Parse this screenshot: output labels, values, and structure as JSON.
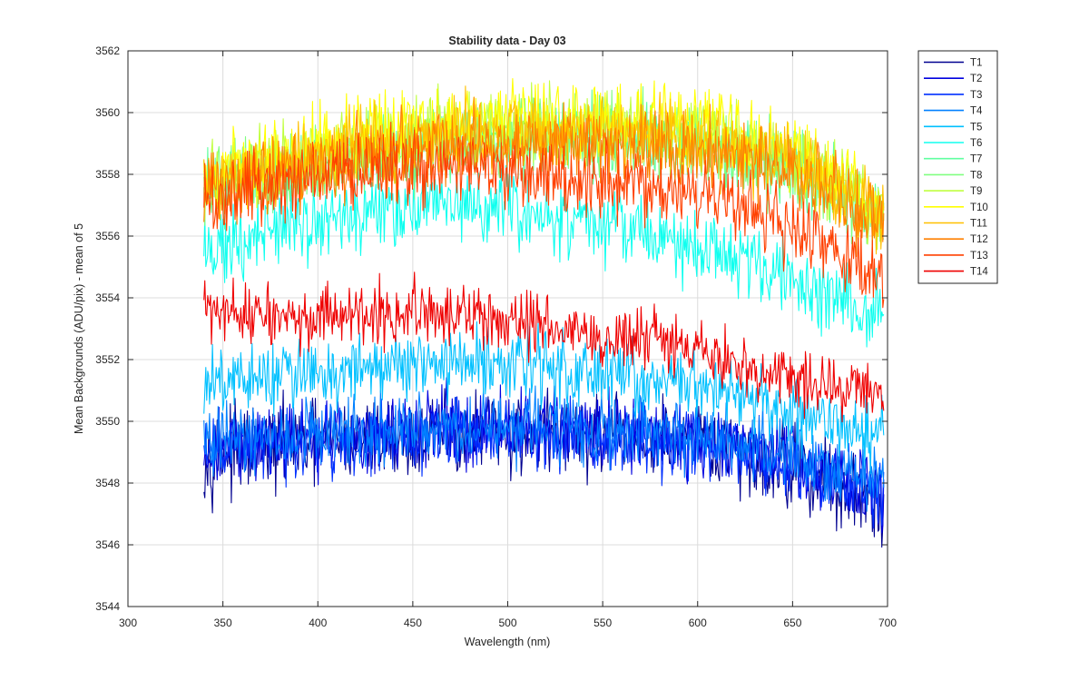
{
  "chart_data": {
    "type": "line",
    "title": "Stability data - Day 03",
    "xlabel": "Wavelength (nm)",
    "ylabel": "Mean Backgrounds (ADU/pix) - mean of 5",
    "xlim": [
      300,
      700
    ],
    "ylim": [
      3544,
      3562
    ],
    "xticks": [
      300,
      350,
      400,
      450,
      500,
      550,
      600,
      650,
      700
    ],
    "yticks": [
      3544,
      3546,
      3548,
      3550,
      3552,
      3554,
      3556,
      3558,
      3560,
      3562
    ],
    "grid": true,
    "legend_position": "outside-top-right",
    "x_start": 340,
    "x_end": 698,
    "series": [
      {
        "name": "T1",
        "color": "#00008F",
        "baseline": [
          3548.9,
          3549.2,
          3549.4,
          3549.6,
          3549.6,
          3549.4,
          3549.2,
          3548.5,
          3547.2
        ],
        "noise": 0.65
      },
      {
        "name": "T2",
        "color": "#0000DF",
        "baseline": [
          3549.0,
          3549.4,
          3549.6,
          3549.8,
          3549.8,
          3549.6,
          3549.3,
          3548.7,
          3547.5
        ],
        "noise": 0.6
      },
      {
        "name": "T3",
        "color": "#0030FF",
        "baseline": [
          3549.0,
          3549.3,
          3549.5,
          3549.6,
          3549.7,
          3549.5,
          3549.2,
          3548.6,
          3547.6
        ],
        "noise": 0.55
      },
      {
        "name": "T4",
        "color": "#0080FF",
        "baseline": [
          3549.2,
          3549.5,
          3549.6,
          3549.8,
          3549.9,
          3549.7,
          3549.4,
          3548.9,
          3548.0
        ],
        "noise": 0.55
      },
      {
        "name": "T5",
        "color": "#00C0FF",
        "baseline": [
          3551.0,
          3551.6,
          3551.8,
          3551.9,
          3551.8,
          3551.5,
          3551.0,
          3550.3,
          3549.5
        ],
        "noise": 0.55
      },
      {
        "name": "T6",
        "color": "#10FFEF",
        "baseline": [
          3555.5,
          3556.3,
          3556.8,
          3557.0,
          3556.7,
          3556.2,
          3555.6,
          3554.7,
          3553.2
        ],
        "noise": 0.6
      },
      {
        "name": "T7",
        "color": "#60FFA0",
        "baseline": [
          3557.4,
          3558.1,
          3558.6,
          3559.0,
          3559.2,
          3559.1,
          3558.9,
          3558.2,
          3556.6
        ],
        "noise": 0.6
      },
      {
        "name": "T8",
        "color": "#80FF80",
        "baseline": [
          3557.6,
          3558.2,
          3558.8,
          3559.1,
          3559.3,
          3559.2,
          3558.9,
          3558.1,
          3556.4
        ],
        "noise": 0.6
      },
      {
        "name": "T9",
        "color": "#C0FF40",
        "baseline": [
          3557.8,
          3558.5,
          3559.1,
          3559.5,
          3559.6,
          3559.5,
          3559.3,
          3558.5,
          3556.8
        ],
        "noise": 0.6
      },
      {
        "name": "T10",
        "color": "#FFFF00",
        "baseline": [
          3558.0,
          3558.7,
          3559.3,
          3559.7,
          3559.8,
          3559.7,
          3559.5,
          3558.7,
          3557.0
        ],
        "noise": 0.6
      },
      {
        "name": "T11",
        "color": "#FFC000",
        "baseline": [
          3557.7,
          3558.4,
          3559.0,
          3559.3,
          3559.4,
          3559.3,
          3559.1,
          3558.3,
          3556.7
        ],
        "noise": 0.6
      },
      {
        "name": "T12",
        "color": "#FF8000",
        "baseline": [
          3557.4,
          3558.0,
          3558.6,
          3559.0,
          3559.1,
          3559.0,
          3558.8,
          3558.0,
          3556.4
        ],
        "noise": 0.6
      },
      {
        "name": "T13",
        "color": "#FF4000",
        "baseline": [
          3557.2,
          3557.8,
          3558.2,
          3558.3,
          3558.0,
          3557.7,
          3557.2,
          3556.2,
          3554.6
        ],
        "noise": 0.6
      },
      {
        "name": "T14",
        "color": "#EF0000",
        "baseline": [
          3553.6,
          3553.3,
          3553.4,
          3553.5,
          3553.1,
          3552.7,
          3552.1,
          3551.3,
          3550.7
        ],
        "noise": 0.5
      }
    ]
  }
}
